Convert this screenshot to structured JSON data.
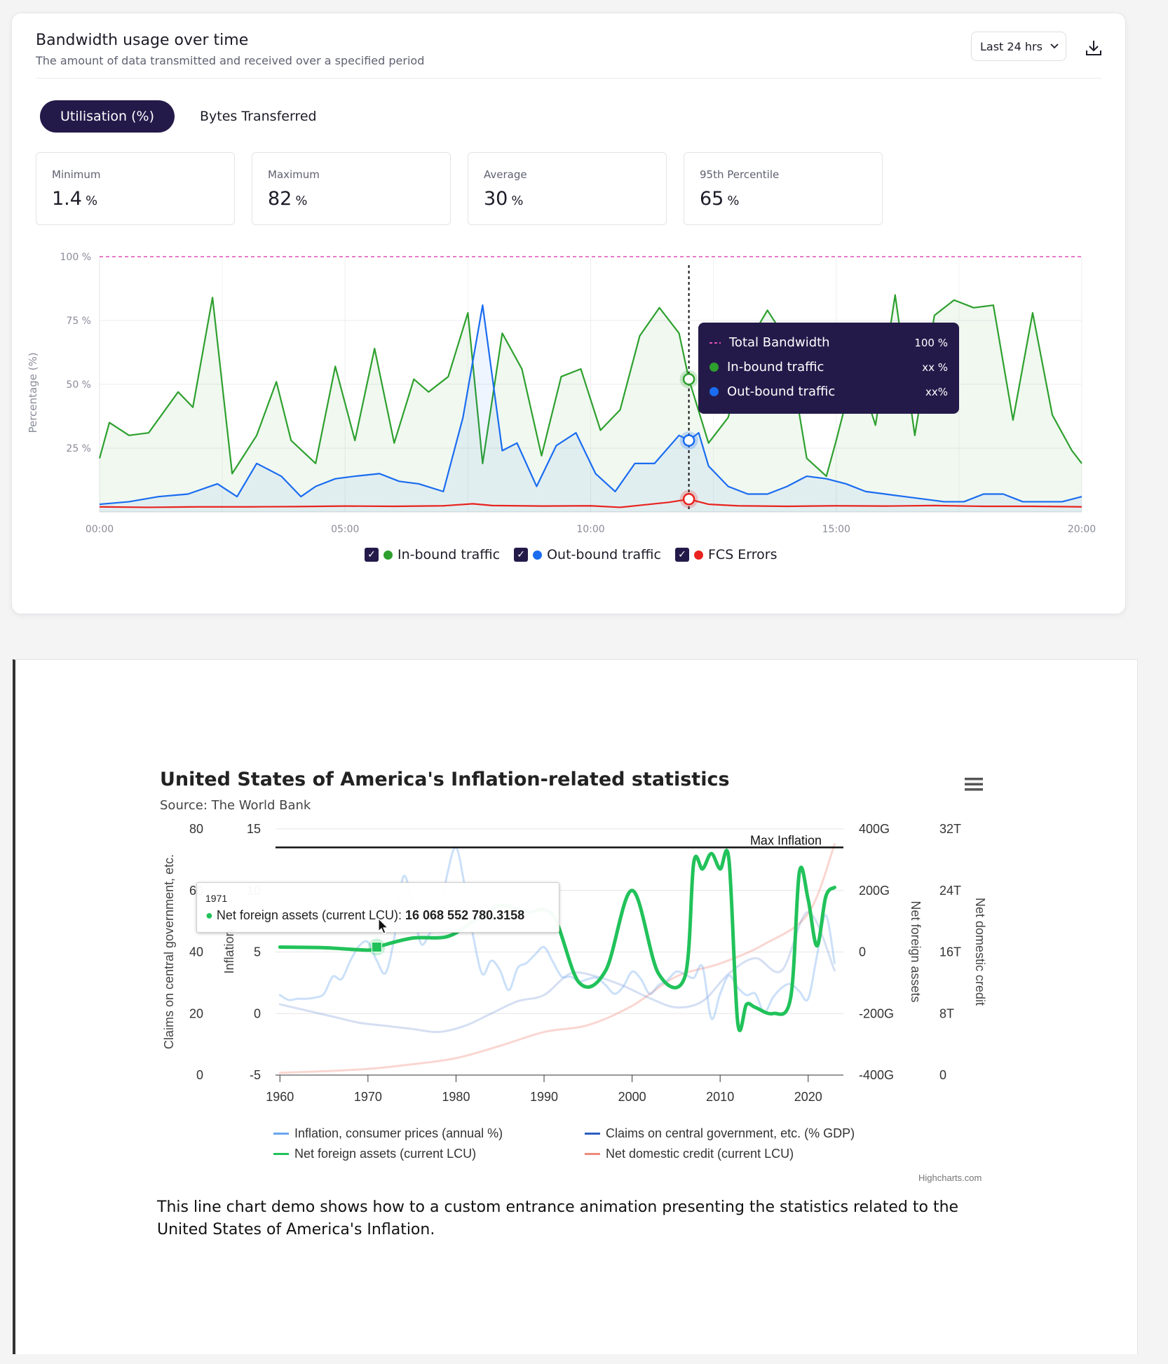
{
  "card": {
    "title": "Bandwidth usage over time",
    "subtitle": "The amount of data transmitted and received over a specified period",
    "range_select": "Last 24 hrs",
    "tabs": [
      "Utilisation (%)",
      "Bytes Transferred"
    ],
    "stats": [
      {
        "label": "Minimum",
        "value": "1.4",
        "unit": "%"
      },
      {
        "label": "Maximum",
        "value": "82",
        "unit": "%"
      },
      {
        "label": "Average",
        "value": "30",
        "unit": "%"
      },
      {
        "label": "95th Percentile",
        "value": "65",
        "unit": "%"
      }
    ],
    "legend": [
      "In-bound traffic",
      "Out-bound traffic",
      "FCS Errors"
    ],
    "tooltip": {
      "rows": [
        {
          "name": "Total Bandwidth",
          "value": "100 %"
        },
        {
          "name": "In-bound traffic",
          "value": "xx %"
        },
        {
          "name": "Out-bound traffic",
          "value": "xx%"
        }
      ]
    },
    "colors": {
      "inbound": "#2ea02e",
      "outbound": "#1a6cf0",
      "errors": "#e8231f",
      "total": "#e04fb4",
      "accent": "#241a4a"
    }
  },
  "chart_data": [
    {
      "type": "area",
      "ylabel": "Percentage (%)",
      "ylim": [
        0,
        100
      ],
      "y_ticks": [
        "25 %",
        "50 %",
        "75 %",
        "100 %"
      ],
      "x_ticks": [
        "00:00",
        "05:00",
        "10:00",
        "15:00",
        "20:00"
      ],
      "xlim": [
        0,
        20
      ],
      "total_bandwidth": 100,
      "hover_x": 12,
      "series": [
        {
          "name": "In-bound traffic",
          "x": [
            0,
            0.2,
            0.6,
            1.0,
            1.6,
            1.9,
            2.3,
            2.7,
            3.2,
            3.6,
            3.9,
            4.4,
            4.8,
            5.2,
            5.6,
            6.0,
            6.4,
            6.7,
            7.1,
            7.5,
            7.8,
            8.2,
            8.6,
            9.0,
            9.4,
            9.8,
            10.2,
            10.6,
            11.0,
            11.4,
            11.8,
            12.0,
            12.4,
            12.8,
            13.2,
            13.6,
            14.0,
            14.4,
            14.8,
            15.0,
            15.4,
            15.8,
            16.2,
            16.6,
            17.0,
            17.4,
            17.8,
            18.2,
            18.6,
            19.0,
            19.4,
            19.8,
            20.0
          ],
          "values": [
            21,
            35,
            30,
            31,
            47,
            41,
            84,
            15,
            30,
            51,
            28,
            19,
            57,
            28,
            64,
            27,
            52,
            47,
            53,
            78,
            19,
            70,
            56,
            22,
            53,
            56,
            32,
            40,
            69,
            80,
            70,
            52,
            27,
            37,
            66,
            79,
            67,
            21,
            14,
            28,
            58,
            34,
            85,
            30,
            77,
            83,
            80,
            81,
            36,
            78,
            38,
            24,
            19
          ]
        },
        {
          "name": "Out-bound traffic",
          "x": [
            0,
            0.6,
            1.2,
            1.8,
            2.4,
            2.8,
            3.2,
            3.7,
            4.1,
            4.4,
            4.8,
            5.2,
            5.7,
            6.1,
            6.5,
            7.0,
            7.4,
            7.8,
            8.2,
            8.5,
            8.9,
            9.3,
            9.7,
            10.1,
            10.5,
            10.9,
            11.3,
            11.8,
            12.0,
            12.2,
            12.4,
            12.8,
            13.2,
            13.6,
            14.0,
            14.4,
            14.8,
            15.2,
            15.6,
            16.0,
            16.4,
            16.8,
            17.2,
            17.6,
            18.0,
            18.4,
            18.8,
            19.2,
            19.6,
            20.0
          ],
          "values": [
            3,
            4,
            6,
            7,
            11,
            6,
            19,
            14,
            6,
            10,
            13,
            14,
            15,
            12,
            11,
            8,
            37,
            81,
            24,
            27,
            10,
            26,
            31,
            15,
            8,
            19,
            19,
            30,
            28,
            31,
            18,
            10,
            7,
            7,
            10,
            14,
            13,
            11,
            8,
            7,
            6,
            5,
            4,
            4,
            7,
            7,
            4,
            4,
            4,
            6
          ]
        },
        {
          "name": "FCS Errors",
          "x": [
            0,
            1,
            2,
            3,
            4,
            5,
            6,
            7,
            7.6,
            8,
            9,
            10,
            10.6,
            11,
            11.6,
            12,
            12.4,
            13,
            14,
            15,
            16,
            17,
            18,
            19,
            20
          ],
          "values": [
            2,
            1.8,
            2,
            2,
            2.1,
            2.3,
            2.2,
            2.4,
            3.2,
            2.5,
            2.3,
            2.4,
            1.8,
            2.6,
            3.8,
            5,
            3,
            2.4,
            2.2,
            2.4,
            2.3,
            2.5,
            2.2,
            2.2,
            2
          ]
        },
        {
          "name": "Total Bandwidth",
          "values": [
            100
          ]
        }
      ]
    },
    {
      "type": "line",
      "title": "United States of America's Inflation-related statistics",
      "subtitle": "Source: The World Bank",
      "x_ticks": [
        "1960",
        "1970",
        "1980",
        "1990",
        "2000",
        "2010",
        "2020"
      ],
      "xlim": [
        1959.5,
        2024
      ],
      "axes": [
        {
          "title": "Claims on central government, etc.",
          "ticks": [
            "0",
            "20",
            "40",
            "60",
            "80"
          ],
          "range": [
            0,
            80
          ]
        },
        {
          "title": "Inflation",
          "ticks": [
            "-5",
            "0",
            "5",
            "10",
            "15"
          ],
          "range": [
            -5,
            15
          ]
        },
        {
          "title": "Net foreign assets",
          "ticks": [
            "-400G",
            "-200G",
            "0",
            "200G",
            "400G"
          ],
          "range": [
            -400,
            400
          ]
        },
        {
          "title": "Net domestic credit",
          "ticks": [
            "0",
            "8T",
            "16T",
            "24T",
            "32T"
          ],
          "range": [
            0,
            32
          ]
        }
      ],
      "plot_line": {
        "label": "Max Inflation",
        "value": 13.5
      },
      "series": [
        {
          "name": "Inflation, consumer prices (annual %)",
          "color": "#6aa6ee",
          "x": [
            1960,
            1961,
            1962,
            1963,
            1964,
            1965,
            1966,
            1967,
            1968,
            1969,
            1970,
            1971,
            1972,
            1973,
            1974,
            1975,
            1976,
            1977,
            1978,
            1979,
            1980,
            1981,
            1982,
            1983,
            1984,
            1985,
            1986,
            1987,
            1988,
            1989,
            1990,
            1991,
            1992,
            1993,
            1994,
            1995,
            1996,
            1997,
            1998,
            1999,
            2000,
            2001,
            2002,
            2003,
            2004,
            2005,
            2006,
            2007,
            2008,
            2009,
            2010,
            2011,
            2012,
            2013,
            2014,
            2015,
            2016,
            2017,
            2018,
            2019,
            2020,
            2021,
            2022,
            2023
          ],
          "values": [
            1.5,
            1.1,
            1.2,
            1.2,
            1.3,
            1.6,
            3.0,
            2.8,
            4.3,
            5.5,
            5.8,
            4.3,
            3.3,
            6.2,
            11.1,
            9.1,
            5.7,
            6.5,
            7.6,
            11.3,
            13.5,
            10.3,
            6.1,
            3.2,
            4.3,
            3.5,
            1.9,
            3.7,
            4.1,
            4.8,
            5.4,
            4.2,
            3.0,
            3.0,
            2.6,
            2.8,
            2.9,
            2.3,
            1.6,
            2.2,
            3.4,
            2.8,
            1.6,
            2.3,
            2.7,
            3.4,
            3.2,
            2.9,
            3.8,
            -0.4,
            1.6,
            3.1,
            2.1,
            1.5,
            1.6,
            0.1,
            1.3,
            2.1,
            2.4,
            1.8,
            1.2,
            4.7,
            8.0,
            4.1
          ]
        },
        {
          "name": "Claims on central government, etc. (% GDP)",
          "color": "#2c5fc2",
          "x": [
            1960,
            1963,
            1966,
            1969,
            1972,
            1975,
            1978,
            1981,
            1984,
            1987,
            1990,
            1993,
            1996,
            1999,
            2002,
            2005,
            2008,
            2011,
            2014,
            2017,
            2020,
            2023
          ],
          "values": [
            23,
            21,
            19,
            17,
            16,
            15,
            14,
            16,
            20,
            24,
            26,
            33,
            32,
            29,
            25,
            22,
            24,
            33,
            38,
            34,
            53,
            34
          ]
        },
        {
          "name": "Net foreign assets (current LCU)",
          "color": "#21c25a",
          "x": [
            1960,
            1965,
            1970,
            1971,
            1975,
            1979,
            1982,
            1985,
            1988,
            1991,
            1994,
            1997,
            2000,
            2003,
            2006,
            2007,
            2008,
            2009,
            2010,
            2011,
            2012,
            2013,
            2014,
            2016,
            2018,
            2019,
            2020,
            2021,
            2022,
            2023
          ],
          "values": [
            16,
            14,
            6,
            16,
            45,
            50,
            100,
            150,
            130,
            120,
            -100,
            -60,
            200,
            -70,
            -80,
            290,
            270,
            320,
            270,
            300,
            -230,
            -170,
            -180,
            -200,
            -150,
            260,
            170,
            20,
            180,
            210
          ]
        },
        {
          "name": "Net domestic credit (current LCU)",
          "color": "#f08a7a",
          "x": [
            1960,
            1965,
            1970,
            1975,
            1980,
            1985,
            1990,
            1995,
            2000,
            2005,
            2010,
            2015,
            2020,
            2023
          ],
          "values": [
            0.3,
            0.5,
            0.8,
            1.4,
            2.2,
            3.8,
            5.6,
            6.5,
            9.0,
            12.8,
            14.5,
            17.0,
            21.0,
            30.0
          ]
        }
      ],
      "hover_x": 1971,
      "tooltip": {
        "header": "1971",
        "series": "Net foreign assets (current LCU)",
        "value": "16 068 552 780.3158"
      },
      "credits": "Highcharts.com",
      "legend": [
        "Inflation, consumer prices (annual %)",
        "Claims on central government, etc. (% GDP)",
        "Net foreign assets (current LCU)",
        "Net domestic credit (current LCU)"
      ]
    }
  ],
  "description": "This line chart demo shows how to a custom entrance animation presenting the statistics related to the United States of America's Inflation."
}
